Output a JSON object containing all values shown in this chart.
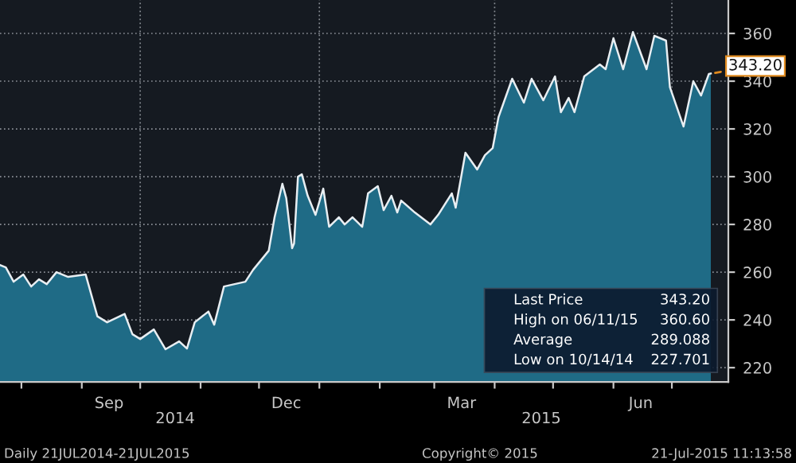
{
  "chart_data": {
    "type": "area",
    "x": [
      "2014-07-21",
      "2014-07-24",
      "2014-07-28",
      "2014-08-02",
      "2014-08-06",
      "2014-08-10",
      "2014-08-14",
      "2014-08-19",
      "2014-08-25",
      "2014-09-03",
      "2014-09-09",
      "2014-09-14",
      "2014-09-23",
      "2014-09-27",
      "2014-10-01",
      "2014-10-08",
      "2014-10-14",
      "2014-10-21",
      "2014-10-25",
      "2014-10-29",
      "2014-11-05",
      "2014-11-08",
      "2014-11-13",
      "2014-11-24",
      "2014-11-28",
      "2014-12-06",
      "2014-12-09",
      "2014-12-13",
      "2014-12-15",
      "2014-12-18",
      "2014-12-19",
      "2014-12-21",
      "2014-12-23",
      "2014-12-26",
      "2014-12-30",
      "2015-01-03",
      "2015-01-06",
      "2015-01-11",
      "2015-01-14",
      "2015-01-18",
      "2015-01-23",
      "2015-01-26",
      "2015-01-31",
      "2015-02-03",
      "2015-02-07",
      "2015-02-10",
      "2015-02-12",
      "2015-02-19",
      "2015-02-27",
      "2015-03-03",
      "2015-03-10",
      "2015-03-12",
      "2015-03-17",
      "2015-03-23",
      "2015-03-27",
      "2015-03-31",
      "2015-04-03",
      "2015-04-10",
      "2015-04-16",
      "2015-04-20",
      "2015-04-26",
      "2015-05-02",
      "2015-05-05",
      "2015-05-09",
      "2015-05-12",
      "2015-05-17",
      "2015-05-25",
      "2015-05-28",
      "2015-06-01",
      "2015-06-06",
      "2015-06-11",
      "2015-06-18",
      "2015-06-22",
      "2015-06-28",
      "2015-06-30",
      "2015-07-07",
      "2015-07-12",
      "2015-07-16",
      "2015-07-20",
      "2015-07-21"
    ],
    "series": [
      {
        "color": "#e8eef2",
        "values": [
          263,
          262,
          256,
          259,
          254,
          257,
          255,
          260,
          258,
          259,
          241.5,
          239,
          242.5,
          234,
          232,
          236,
          227.7,
          231,
          228,
          239,
          243.5,
          238,
          254,
          256,
          261,
          269,
          283,
          297,
          291,
          270,
          272,
          300,
          301,
          292,
          284,
          295,
          279,
          283,
          280,
          283,
          279,
          293,
          296,
          286,
          292,
          285,
          290,
          285,
          280,
          284,
          293,
          287,
          310,
          303,
          309,
          312,
          325,
          341,
          331,
          341,
          332,
          342,
          327,
          333,
          327,
          342,
          347,
          345,
          358,
          345,
          360.6,
          345,
          359,
          357,
          337.5,
          321,
          340,
          334,
          343,
          343.2
        ]
      }
    ],
    "xlim": [
      "2014-07-21",
      "2015-07-30"
    ],
    "xticks": [
      {
        "value": "2014-08-01",
        "label": null
      },
      {
        "value": "2014-09-01",
        "label": null
      },
      {
        "value": "2014-09-15",
        "label": "Sep"
      },
      {
        "value": "2014-10-01",
        "label": null
      },
      {
        "value": "2014-11-01",
        "label": null
      },
      {
        "value": "2014-12-01",
        "label": null
      },
      {
        "value": "2014-12-15",
        "label": "Dec"
      },
      {
        "value": "2015-01-01",
        "label": null
      },
      {
        "value": "2015-02-01",
        "label": null
      },
      {
        "value": "2015-03-01",
        "label": null
      },
      {
        "value": "2015-03-15",
        "label": "Mar"
      },
      {
        "value": "2015-04-01",
        "label": null
      },
      {
        "value": "2015-05-01",
        "label": null
      },
      {
        "value": "2015-06-01",
        "label": null
      },
      {
        "value": "2015-06-15",
        "label": "Jun"
      },
      {
        "value": "2015-07-01",
        "label": null
      }
    ],
    "ylim": [
      214,
      374
    ],
    "yticks": [
      220,
      240,
      260,
      280,
      300,
      320,
      340,
      360
    ],
    "grid": "y",
    "ref_lines": [
      {
        "axis": "x",
        "value": "2014-10-01",
        "line_style": "dotted"
      },
      {
        "axis": "x",
        "value": "2015-01-01",
        "line_style": "dotted"
      },
      {
        "axis": "x",
        "value": "2015-04-01",
        "line_style": "dotted"
      },
      {
        "axis": "x",
        "value": "2015-07-01",
        "line_style": "dotted"
      }
    ],
    "annotations": [
      "2014",
      "2015",
      "Daily 21JUL2014-21JUL2015",
      "Copyright© 2015",
      "21-Jul-2015 11:13:58",
      {
        "text": "343.20",
        "x": "2015-07-21",
        "y": 343.2
      },
      "Last Price",
      "343.20",
      "High on 06/11/15",
      "360.60",
      "Average",
      "289.088",
      "Low on 10/14/14",
      "227.701"
    ]
  }
}
